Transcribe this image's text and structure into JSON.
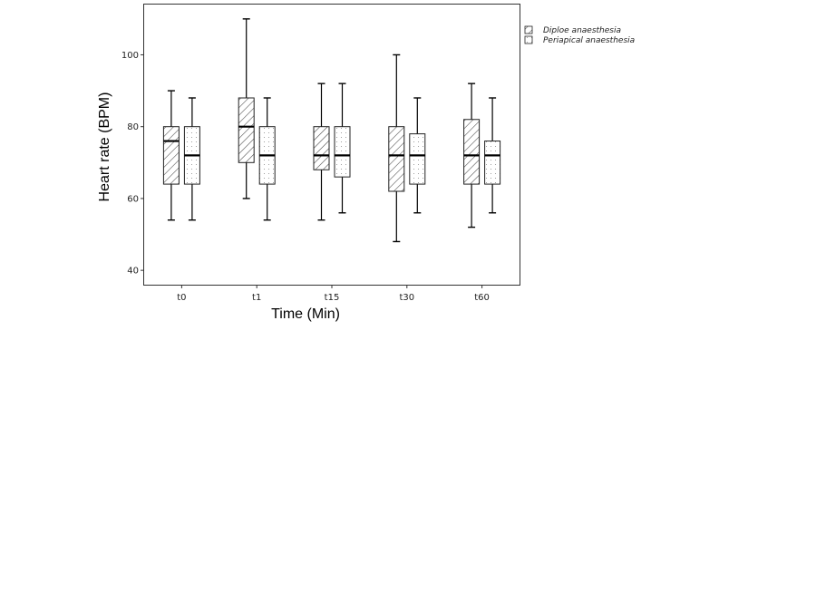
{
  "chart_data": {
    "type": "boxplot",
    "xlabel": "Time (Min)",
    "ylabel": "Heart rate (BPM)",
    "categories": [
      "t0",
      "t1",
      "t15",
      "t30",
      "t60"
    ],
    "y_ticks": [
      40,
      60,
      80,
      100
    ],
    "ylim": [
      36,
      114
    ],
    "legend_position": "top-right-outside",
    "series": [
      {
        "name": "Diploe anaesthesia",
        "pattern": "hatch",
        "boxes": [
          {
            "min": 54,
            "q1": 64,
            "median": 76,
            "q3": 80,
            "max": 90
          },
          {
            "min": 60,
            "q1": 70,
            "median": 80,
            "q3": 88,
            "max": 110
          },
          {
            "min": 54,
            "q1": 68,
            "median": 72,
            "q3": 80,
            "max": 92
          },
          {
            "min": 48,
            "q1": 62,
            "median": 72,
            "q3": 80,
            "max": 100
          },
          {
            "min": 52,
            "q1": 64,
            "median": 72,
            "q3": 82,
            "max": 92
          }
        ]
      },
      {
        "name": "Periapical anaesthesia",
        "pattern": "dots",
        "boxes": [
          {
            "min": 54,
            "q1": 64,
            "median": 72,
            "q3": 80,
            "max": 88
          },
          {
            "min": 54,
            "q1": 64,
            "median": 72,
            "q3": 80,
            "max": 88
          },
          {
            "min": 56,
            "q1": 66,
            "median": 72,
            "q3": 80,
            "max": 92
          },
          {
            "min": 56,
            "q1": 64,
            "median": 72,
            "q3": 78,
            "max": 88
          },
          {
            "min": 56,
            "q1": 64,
            "median": 72,
            "q3": 76,
            "max": 88
          }
        ]
      }
    ],
    "colors": {
      "stroke": "#000000",
      "frame": "#333333",
      "hatch": "#444444",
      "dots": "#888888"
    }
  }
}
